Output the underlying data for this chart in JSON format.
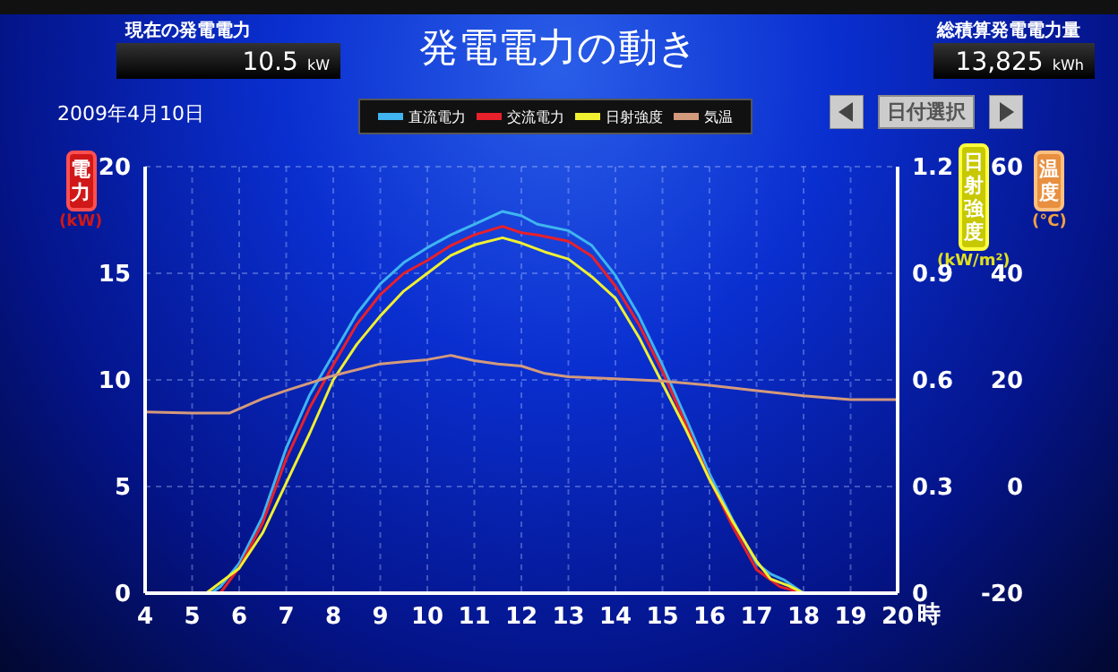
{
  "chart_data": {
    "type": "line",
    "title": "発電電力の動き",
    "xlabel": "時",
    "ylabel": "電力 (kW)",
    "y2label": "日射強度 (kW/m²)",
    "y3label": "温度 (°C)",
    "annotations": [
      "現在の発電電力",
      "10.5 kW",
      "総積算発電電力量",
      "13,825 kWh",
      "2009年4月10日",
      "日付選択"
    ],
    "xlim": [
      4,
      20
    ],
    "xticks": [
      4,
      5,
      6,
      7,
      8,
      9,
      10,
      11,
      12,
      13,
      14,
      15,
      16,
      17,
      18,
      19,
      20
    ],
    "ylim": [
      0,
      20
    ],
    "yticks": [
      0,
      5,
      10,
      15,
      20
    ],
    "y2lim": [
      0,
      1.2
    ],
    "y2ticks": [
      0,
      0.3,
      0.6,
      0.9,
      1.2
    ],
    "y3lim": [
      -20,
      60
    ],
    "y3ticks": [
      -20,
      0,
      20,
      40,
      60
    ],
    "grid": true,
    "legend": "top",
    "marker": "none",
    "line_style": "solid",
    "series": [
      {
        "name": "直流電力",
        "color": "#3fb4f0",
        "x": [
          5.4,
          5.6,
          6,
          6.5,
          7,
          7.5,
          8,
          8.5,
          9,
          9.5,
          10,
          10.5,
          11,
          11.6,
          12,
          12.34,
          13,
          13.5,
          14,
          14.5,
          15,
          15.5,
          16,
          16.5,
          17,
          17.3,
          17.6,
          18
        ],
        "values": [
          0,
          0.3,
          1.4,
          3.6,
          6.8,
          9.3,
          11.2,
          13.1,
          14.5,
          15.5,
          16.2,
          16.8,
          17.3,
          17.9,
          17.7,
          17.3,
          17.0,
          16.3,
          14.9,
          13.0,
          10.7,
          8.2,
          5.6,
          3.4,
          1.4,
          0.9,
          0.6,
          0
        ]
      },
      {
        "name": "交流電力",
        "color": "#e8202a",
        "x": [
          5.6,
          6,
          6.5,
          7,
          7.5,
          8,
          8.5,
          9,
          9.5,
          10,
          10.5,
          11,
          11.6,
          12,
          12.34,
          13,
          13.5,
          14,
          14.5,
          15,
          15.5,
          16,
          16.5,
          17,
          17.5,
          18
        ],
        "values": [
          0,
          1.2,
          3.3,
          6.3,
          8.7,
          10.7,
          12.6,
          14.0,
          15.0,
          15.6,
          16.3,
          16.8,
          17.2,
          16.9,
          16.8,
          16.5,
          15.8,
          14.4,
          12.6,
          10.4,
          7.9,
          5.35,
          3.1,
          1.1,
          0.3,
          0
        ]
      },
      {
        "name": "日射強度",
        "color": "#f0f030",
        "axis": "y2",
        "x": [
          5.3,
          6,
          6.5,
          7,
          7.5,
          8,
          8.5,
          9,
          9.5,
          10,
          10.5,
          11,
          11.6,
          12,
          12.5,
          13,
          13.5,
          14,
          14.5,
          15,
          15.5,
          16,
          16.5,
          17,
          17.3,
          17.7,
          18
        ],
        "values": [
          0,
          0.07,
          0.17,
          0.31,
          0.45,
          0.6,
          0.7,
          0.78,
          0.85,
          0.9,
          0.95,
          0.98,
          1.0,
          0.985,
          0.96,
          0.94,
          0.89,
          0.83,
          0.72,
          0.59,
          0.46,
          0.32,
          0.2,
          0.09,
          0.04,
          0.02,
          0
        ]
      },
      {
        "name": "気温",
        "color": "#d49a7c",
        "axis": "y3",
        "x": [
          4,
          5,
          5.8,
          6.5,
          7,
          8,
          9,
          9.5,
          10,
          10.5,
          11,
          11.5,
          12,
          12.5,
          13,
          14,
          15,
          16,
          17,
          18,
          19,
          20
        ],
        "values": [
          14,
          13.8,
          13.8,
          16.5,
          18,
          20.8,
          23,
          23.4,
          23.8,
          24.6,
          23.6,
          23.0,
          22.6,
          21.2,
          20.6,
          20.2,
          19.8,
          19,
          18,
          17,
          16.3,
          16.3
        ]
      }
    ]
  }
}
